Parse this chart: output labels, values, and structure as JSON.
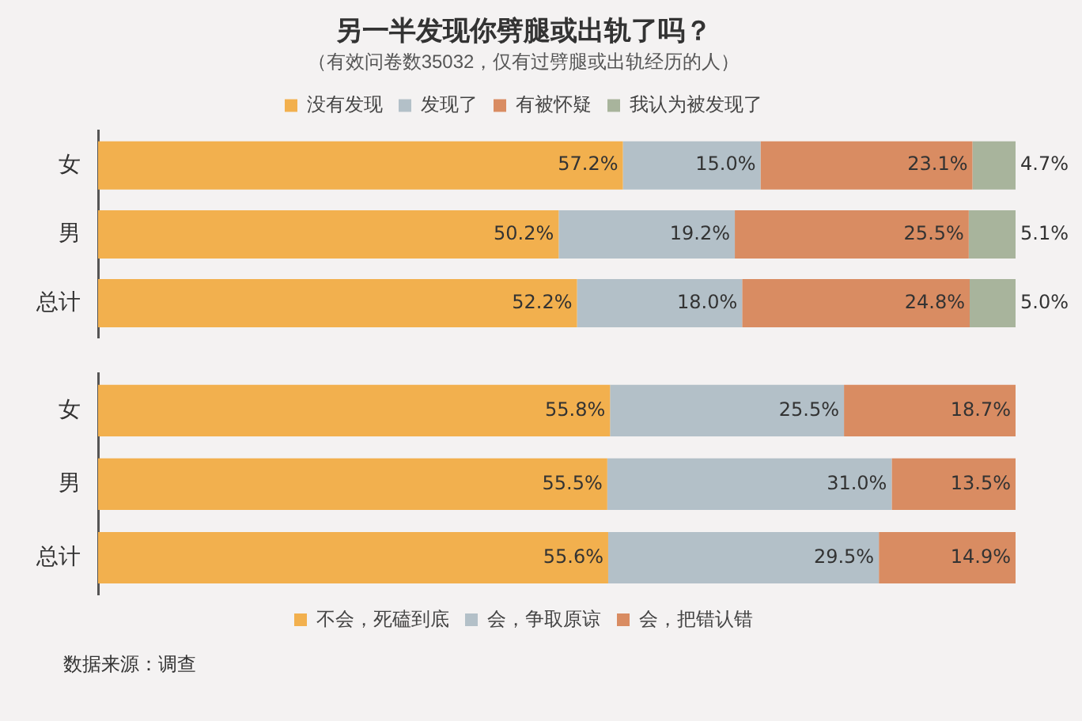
{
  "chart_data": [
    {
      "type": "bar",
      "orientation": "horizontal",
      "stacked": true,
      "title": "另一半发现你劈腿或出轨了吗？",
      "subtitle": "（有效问卷数35032，仅有过劈腿或出轨经历的人）",
      "categories": [
        "女",
        "男",
        "总计"
      ],
      "xlim": [
        0,
        100
      ],
      "tick_labels": "y",
      "legend": "top",
      "series": [
        {
          "name": "没有发现",
          "color": "#f2b04e",
          "values": [
            57.2,
            50.2,
            52.2
          ],
          "value_labels": [
            "57.2%",
            "50.2%",
            "52.2%"
          ]
        },
        {
          "name": "发现了",
          "color": "#b3c0c8",
          "values": [
            15.0,
            19.2,
            18.0
          ],
          "value_labels": [
            "15.0%",
            "19.2%",
            "18.0%"
          ]
        },
        {
          "name": "有被怀疑",
          "color": "#d98c62",
          "values": [
            23.1,
            25.5,
            24.8
          ],
          "value_labels": [
            "23.1%",
            "25.5%",
            "24.8%"
          ]
        },
        {
          "name": "我认为被发现了",
          "color": "#a8b49c",
          "values": [
            4.7,
            5.1,
            5.0
          ],
          "value_labels": [
            "4.7%",
            "5.1%",
            "5.0%"
          ]
        }
      ]
    },
    {
      "type": "bar",
      "orientation": "horizontal",
      "stacked": true,
      "categories": [
        "女",
        "男",
        "总计"
      ],
      "xlim": [
        0,
        100
      ],
      "tick_labels": "y",
      "legend": "bottom",
      "annotations": [
        "数据来源：调查"
      ],
      "series": [
        {
          "name": "不会，死磕到底",
          "color": "#f2b04e",
          "values": [
            55.8,
            55.5,
            55.6
          ],
          "value_labels": [
            "55.8%",
            "55.5%",
            "55.6%"
          ]
        },
        {
          "name": "会，争取原谅",
          "color": "#b3c0c8",
          "values": [
            25.5,
            31.0,
            29.5
          ],
          "value_labels": [
            "25.5%",
            "31.0%",
            "29.5%"
          ]
        },
        {
          "name": "会，把错认错",
          "color": "#d98c62",
          "values": [
            18.7,
            13.5,
            14.9
          ],
          "value_labels": [
            "18.7%",
            "13.5%",
            "14.9%"
          ]
        }
      ]
    }
  ]
}
